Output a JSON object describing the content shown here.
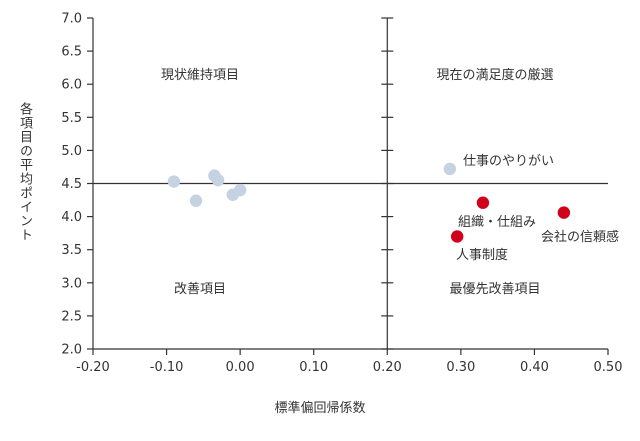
{
  "chart_data": {
    "type": "scatter",
    "xlabel": "標準偏回帰係数",
    "ylabel": "各項目の平均ポイント",
    "xlim": [
      -0.2,
      0.5
    ],
    "ylim": [
      2.0,
      7.0
    ],
    "x_ticks": [
      -0.2,
      -0.1,
      0.0,
      0.1,
      0.2,
      0.3,
      0.4,
      0.5
    ],
    "x_tick_labels": [
      "-0.20",
      "-0.10",
      "0.00",
      "0.10",
      "0.20",
      "0.30",
      "0.40",
      "0.50"
    ],
    "y_ticks": [
      2.0,
      2.5,
      3.0,
      3.5,
      4.0,
      4.5,
      5.0,
      5.5,
      6.0,
      6.5,
      7.0
    ],
    "y_tick_labels": [
      "2.0",
      "2.5",
      "3.0",
      "3.5",
      "4.0",
      "4.5",
      "5.0",
      "5.5",
      "6.0",
      "6.5",
      "7.0"
    ],
    "divider": {
      "x": 0.2,
      "y": 4.5
    },
    "quadrants": {
      "top_left": "現状維持項目",
      "top_right": "現在の満足度の厳選",
      "bottom_left": "改善項目",
      "bottom_right": "最優先改善項目"
    },
    "colors": {
      "blue": "#c5d2e2",
      "red": "#d0021b",
      "axis": "#333333",
      "emphasis_text": "#d0021b"
    },
    "points": [
      {
        "x": -0.09,
        "y": 4.53,
        "color": "blue",
        "label": ""
      },
      {
        "x": -0.06,
        "y": 4.24,
        "color": "blue",
        "label": ""
      },
      {
        "x": -0.035,
        "y": 4.62,
        "color": "blue",
        "label": ""
      },
      {
        "x": -0.03,
        "y": 4.55,
        "color": "blue",
        "label": ""
      },
      {
        "x": -0.01,
        "y": 4.33,
        "color": "blue",
        "label": ""
      },
      {
        "x": 0.0,
        "y": 4.4,
        "color": "blue",
        "label": ""
      },
      {
        "x": 0.285,
        "y": 4.72,
        "color": "blue",
        "label": "仕事のやりがい"
      },
      {
        "x": 0.33,
        "y": 4.21,
        "color": "red",
        "label": "組織・仕組み"
      },
      {
        "x": 0.44,
        "y": 4.06,
        "color": "red",
        "label": "会社の信頼感"
      },
      {
        "x": 0.295,
        "y": 3.7,
        "color": "red",
        "label": "人事制度"
      }
    ]
  }
}
